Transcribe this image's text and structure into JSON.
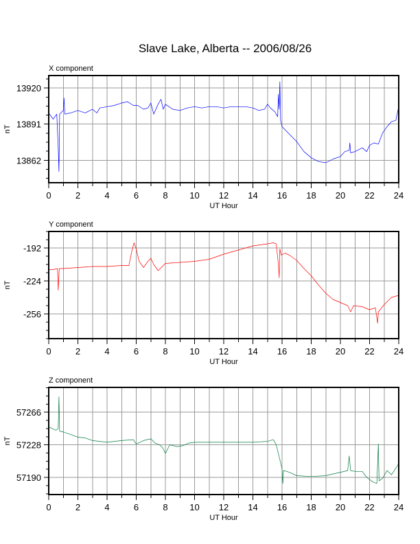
{
  "title": "Slave Lake, Alberta -- 2006/08/26",
  "chart_data": [
    {
      "type": "line",
      "title": "X component",
      "xlabel": "UT Hour",
      "ylabel": "nT",
      "xlim": [
        0,
        24
      ],
      "ylim": [
        13844,
        13930
      ],
      "x_ticks": [
        0,
        2,
        4,
        6,
        8,
        10,
        12,
        14,
        16,
        18,
        20,
        22,
        24
      ],
      "y_ticks": [
        13920,
        13891,
        13862
      ],
      "color": "#0000ff",
      "series": [
        {
          "points": [
            [
              0,
              13900
            ],
            [
              0.3,
              13895
            ],
            [
              0.55,
              13899
            ],
            [
              0.65,
              13873
            ],
            [
              0.7,
              13853
            ],
            [
              0.75,
              13899
            ],
            [
              1.0,
              13902
            ],
            [
              1.05,
              13912
            ],
            [
              1.1,
              13899
            ],
            [
              1.5,
              13900
            ],
            [
              2.0,
              13902
            ],
            [
              2.5,
              13900
            ],
            [
              3.0,
              13903
            ],
            [
              3.3,
              13900
            ],
            [
              3.5,
              13904
            ],
            [
              4.0,
              13905
            ],
            [
              4.5,
              13906
            ],
            [
              5.0,
              13908
            ],
            [
              5.4,
              13909
            ],
            [
              5.8,
              13906
            ],
            [
              6.1,
              13906
            ],
            [
              6.5,
              13903
            ],
            [
              6.8,
              13904
            ],
            [
              7.0,
              13908
            ],
            [
              7.2,
              13899
            ],
            [
              7.5,
              13907
            ],
            [
              7.7,
              13911
            ],
            [
              7.85,
              13903
            ],
            [
              8.0,
              13907
            ],
            [
              8.5,
              13903
            ],
            [
              9.0,
              13902
            ],
            [
              9.5,
              13904
            ],
            [
              10.0,
              13905
            ],
            [
              10.5,
              13904
            ],
            [
              11.0,
              13905
            ],
            [
              11.5,
              13905
            ],
            [
              12.0,
              13904
            ],
            [
              12.5,
              13905
            ],
            [
              13.0,
              13905
            ],
            [
              13.5,
              13905
            ],
            [
              14.0,
              13904
            ],
            [
              14.4,
              13902
            ],
            [
              14.8,
              13903
            ],
            [
              15.0,
              13907
            ],
            [
              15.2,
              13904
            ],
            [
              15.5,
              13901
            ],
            [
              15.7,
              13897
            ],
            [
              15.75,
              13915
            ],
            [
              15.8,
              13903
            ],
            [
              15.85,
              13925
            ],
            [
              15.9,
              13894
            ],
            [
              16.0,
              13889
            ],
            [
              16.5,
              13883
            ],
            [
              17.0,
              13877
            ],
            [
              17.5,
              13869
            ],
            [
              18.0,
              13864
            ],
            [
              18.5,
              13861
            ],
            [
              19.0,
              13860
            ],
            [
              19.5,
              13863
            ],
            [
              20.0,
              13865
            ],
            [
              20.3,
              13869
            ],
            [
              20.6,
              13870
            ],
            [
              20.65,
              13876
            ],
            [
              20.7,
              13868
            ],
            [
              21.0,
              13869
            ],
            [
              21.5,
              13872
            ],
            [
              21.8,
              13869
            ],
            [
              22.0,
              13874
            ],
            [
              22.3,
              13876
            ],
            [
              22.6,
              13875
            ],
            [
              22.9,
              13884
            ],
            [
              23.2,
              13889
            ],
            [
              23.5,
              13893
            ],
            [
              23.8,
              13894
            ],
            [
              24.0,
              13905
            ]
          ]
        }
      ]
    },
    {
      "type": "line",
      "title": "Y component",
      "xlabel": "UT Hour",
      "ylabel": "nT",
      "xlim": [
        0,
        24
      ],
      "ylim": [
        -280,
        -176
      ],
      "x_ticks": [
        0,
        2,
        4,
        6,
        8,
        10,
        12,
        14,
        16,
        18,
        20,
        22,
        24
      ],
      "y_ticks": [
        -192,
        -224,
        -256
      ],
      "color": "#ff0000",
      "series": [
        {
          "points": [
            [
              0,
              -213
            ],
            [
              0.3,
              -213
            ],
            [
              0.6,
              -212
            ],
            [
              0.65,
              -233
            ],
            [
              0.72,
              -212
            ],
            [
              1.0,
              -212
            ],
            [
              2.0,
              -211
            ],
            [
              3.0,
              -210
            ],
            [
              4.0,
              -210
            ],
            [
              5.0,
              -209
            ],
            [
              5.5,
              -209
            ],
            [
              5.7,
              -195
            ],
            [
              5.85,
              -187
            ],
            [
              6.0,
              -193
            ],
            [
              6.2,
              -205
            ],
            [
              6.5,
              -211
            ],
            [
              6.8,
              -205
            ],
            [
              7.0,
              -202
            ],
            [
              7.2,
              -208
            ],
            [
              7.5,
              -214
            ],
            [
              8.0,
              -207
            ],
            [
              9.0,
              -206
            ],
            [
              10.0,
              -205
            ],
            [
              11.0,
              -203
            ],
            [
              12.0,
              -198
            ],
            [
              13.0,
              -194
            ],
            [
              14.0,
              -190
            ],
            [
              15.0,
              -188
            ],
            [
              15.4,
              -187
            ],
            [
              15.6,
              -188
            ],
            [
              15.75,
              -208
            ],
            [
              15.8,
              -221
            ],
            [
              15.85,
              -193
            ],
            [
              15.95,
              -199
            ],
            [
              16.2,
              -197
            ],
            [
              16.5,
              -199
            ],
            [
              17.0,
              -204
            ],
            [
              17.5,
              -212
            ],
            [
              18.0,
              -219
            ],
            [
              18.5,
              -228
            ],
            [
              19.0,
              -236
            ],
            [
              19.5,
              -242
            ],
            [
              20.0,
              -245
            ],
            [
              20.5,
              -248
            ],
            [
              20.7,
              -254
            ],
            [
              20.9,
              -248
            ],
            [
              21.5,
              -249
            ],
            [
              22.0,
              -252
            ],
            [
              22.4,
              -250
            ],
            [
              22.55,
              -265
            ],
            [
              22.6,
              -254
            ],
            [
              23.0,
              -247
            ],
            [
              23.5,
              -240
            ],
            [
              24.0,
              -238
            ]
          ]
        }
      ]
    },
    {
      "type": "line",
      "title": "Z component",
      "xlabel": "UT Hour",
      "ylabel": "nT",
      "xlim": [
        0,
        24
      ],
      "ylim": [
        57170,
        57295
      ],
      "x_ticks": [
        0,
        2,
        4,
        6,
        8,
        10,
        12,
        14,
        16,
        18,
        20,
        22,
        24
      ],
      "y_ticks": [
        57266,
        57228,
        57190
      ],
      "color": "#007a3d",
      "series": [
        {
          "points": [
            [
              0,
              57249
            ],
            [
              0.5,
              57245
            ],
            [
              0.65,
              57247
            ],
            [
              0.7,
              57284
            ],
            [
              0.75,
              57244
            ],
            [
              1.0,
              57243
            ],
            [
              1.5,
              57240
            ],
            [
              2.0,
              57237
            ],
            [
              2.5,
              57236
            ],
            [
              3.0,
              57233
            ],
            [
              4.0,
              57231
            ],
            [
              5.0,
              57233
            ],
            [
              5.8,
              57234
            ],
            [
              6.0,
              57229
            ],
            [
              6.5,
              57233
            ],
            [
              7.0,
              57235
            ],
            [
              7.3,
              57230
            ],
            [
              7.6,
              57228
            ],
            [
              7.8,
              57225
            ],
            [
              8.0,
              57218
            ],
            [
              8.3,
              57228
            ],
            [
              8.8,
              57226
            ],
            [
              9.2,
              57227
            ],
            [
              9.6,
              57230
            ],
            [
              10.0,
              57231
            ],
            [
              11.0,
              57231
            ],
            [
              12.0,
              57231
            ],
            [
              13.0,
              57231
            ],
            [
              14.0,
              57231
            ],
            [
              15.0,
              57232
            ],
            [
              15.4,
              57234
            ],
            [
              15.6,
              57228
            ],
            [
              15.8,
              57214
            ],
            [
              16.0,
              57200
            ],
            [
              16.05,
              57183
            ],
            [
              16.1,
              57198
            ],
            [
              16.5,
              57196
            ],
            [
              17.0,
              57192
            ],
            [
              18.0,
              57191
            ],
            [
              19.0,
              57192
            ],
            [
              19.5,
              57194
            ],
            [
              20.0,
              57196
            ],
            [
              20.5,
              57198
            ],
            [
              20.6,
              57215
            ],
            [
              20.7,
              57198
            ],
            [
              21.0,
              57197
            ],
            [
              21.5,
              57197
            ],
            [
              21.8,
              57190
            ],
            [
              22.2,
              57185
            ],
            [
              22.5,
              57183
            ],
            [
              22.6,
              57229
            ],
            [
              22.65,
              57186
            ],
            [
              22.9,
              57189
            ],
            [
              23.2,
              57198
            ],
            [
              23.5,
              57193
            ],
            [
              24.0,
              57206
            ]
          ]
        }
      ]
    }
  ]
}
